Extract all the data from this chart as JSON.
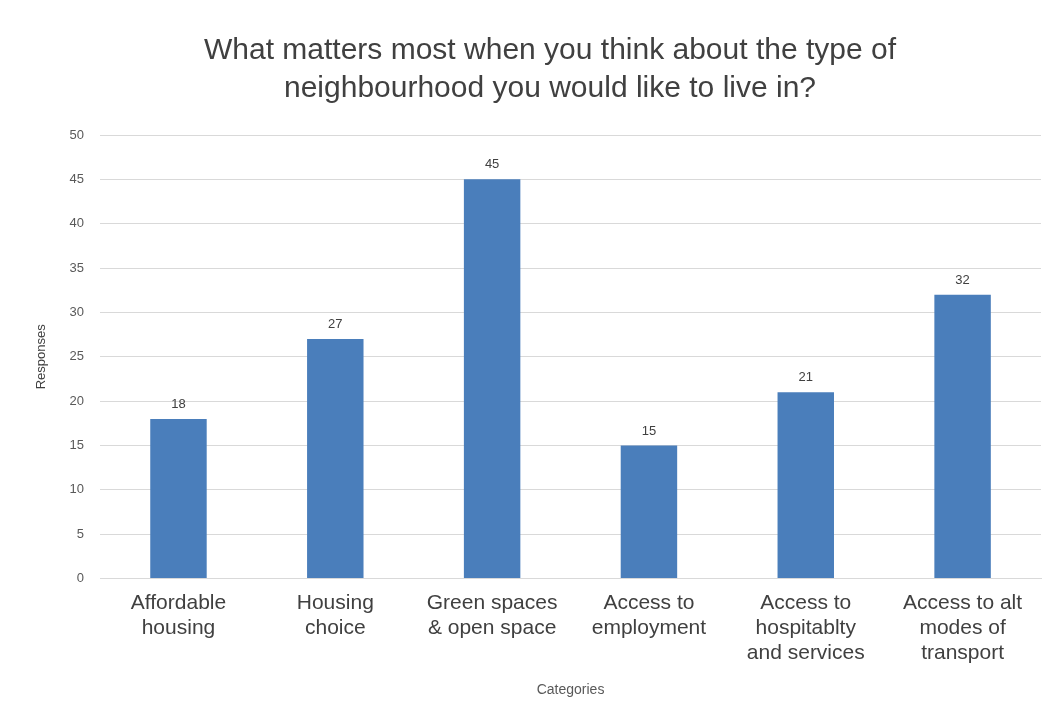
{
  "chart_data": {
    "type": "bar",
    "title": "What matters most when you think about the type of neighbourhood you would like to live in?",
    "xlabel": "Categories",
    "ylabel": "Responses",
    "categories": [
      "Affordable housing",
      "Housing choice",
      "Green spaces & open space",
      "Access to employment",
      "Access to hospitablty and services",
      "Access to alt modes of transport"
    ],
    "values": [
      18,
      27,
      45,
      15,
      21,
      32
    ],
    "color": "#4a7ebb",
    "ylim": [
      0,
      50
    ],
    "yticks": [
      0,
      5,
      10,
      15,
      20,
      25,
      30,
      35,
      40,
      45,
      50
    ],
    "grid": "y",
    "data_labels": true,
    "legend": false
  }
}
